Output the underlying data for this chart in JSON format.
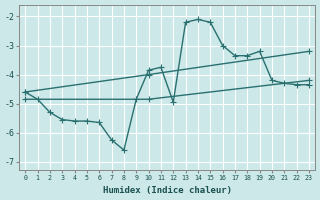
{
  "xlabel": "Humidex (Indice chaleur)",
  "bg_color": "#cce8e8",
  "grid_color": "#b0d8d8",
  "line_color": "#2a7070",
  "xlim": [
    -0.5,
    23.5
  ],
  "ylim": [
    -7.3,
    -1.6
  ],
  "xticks": [
    0,
    1,
    2,
    3,
    4,
    5,
    6,
    7,
    8,
    9,
    10,
    11,
    12,
    13,
    14,
    15,
    16,
    17,
    18,
    19,
    20,
    21,
    22,
    23
  ],
  "yticks": [
    -7,
    -6,
    -5,
    -4,
    -3,
    -2
  ],
  "line1_x": [
    0,
    1,
    2,
    3,
    4,
    5,
    6,
    7,
    8,
    9,
    10,
    11,
    12,
    13,
    14,
    15,
    16,
    17,
    18,
    19,
    20,
    21,
    22,
    23
  ],
  "line1_y": [
    -4.6,
    -4.85,
    -5.3,
    -5.55,
    -5.6,
    -5.6,
    -5.65,
    -6.25,
    -6.6,
    -4.85,
    -3.85,
    -3.75,
    -4.95,
    -2.2,
    -2.1,
    -2.2,
    -3.0,
    -3.35,
    -3.35,
    -3.2,
    -4.2,
    -4.3,
    -4.35,
    -4.35
  ],
  "line2_x": [
    0,
    10,
    23
  ],
  "line2_y": [
    -4.6,
    -4.0,
    -3.2
  ],
  "line3_x": [
    0,
    10,
    23
  ],
  "line3_y": [
    -4.85,
    -4.85,
    -4.2
  ]
}
